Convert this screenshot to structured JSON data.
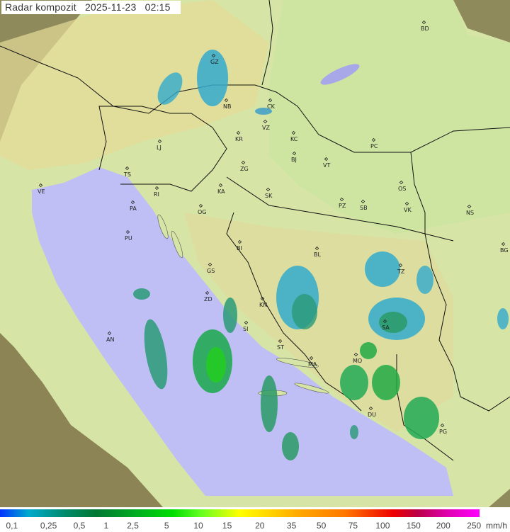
{
  "title": {
    "label": "Radar kompozit",
    "date": "2025-11-23",
    "time": "02:15"
  },
  "cities": [
    "GZ",
    "BD",
    "NB",
    "CK",
    "VZ",
    "KR",
    "KC",
    "PC",
    "LJ",
    "BJ",
    "VT",
    "ZG",
    "TS",
    "VE",
    "RI",
    "KA",
    "SK",
    "OS",
    "PA",
    "OG",
    "PZ",
    "SB",
    "VK",
    "NS",
    "PU",
    "BI",
    "BL",
    "BG",
    "TZ",
    "GS",
    "ZD",
    "KN",
    "SA",
    "SI",
    "AN",
    "ST",
    "MA",
    "MO",
    "DU",
    "PG"
  ],
  "legend": {
    "unit": "mm/h",
    "values": [
      "0,1",
      "0,25",
      "0,5",
      "1",
      "2,5",
      "5",
      "10",
      "15",
      "20",
      "35",
      "50",
      "75",
      "100",
      "150",
      "200",
      "250"
    ]
  },
  "colors": {
    "sea": "#bfbff5",
    "land": "#d8e6a8",
    "outside": "#8a8a5a",
    "rain_low": "#33aacc",
    "rain_mid": "#2a9a55",
    "rain_high": "#22cc22"
  }
}
